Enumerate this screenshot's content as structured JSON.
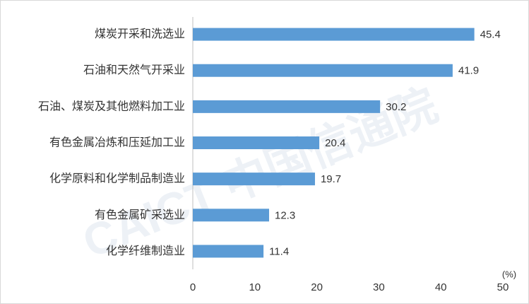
{
  "chart_data": {
    "type": "bar",
    "orientation": "horizontal",
    "categories": [
      "煤炭开采和洗选业",
      "石油和天然气开采业",
      "石油、煤炭及其他燃料加工业",
      "有色金属冶炼和压延加工业",
      "化学原料和化学制品制造业",
      "有色金属矿采选业",
      "化学纤维制造业"
    ],
    "values": [
      45.4,
      41.9,
      30.2,
      20.4,
      19.7,
      12.3,
      11.4
    ],
    "color": "#5b9bd5",
    "xlim": [
      0,
      50
    ],
    "xticks": [
      0,
      10,
      20,
      30,
      40,
      50
    ],
    "x_axis_label": "(%)",
    "watermark": "CAICT 中国信通院",
    "grid": false
  }
}
